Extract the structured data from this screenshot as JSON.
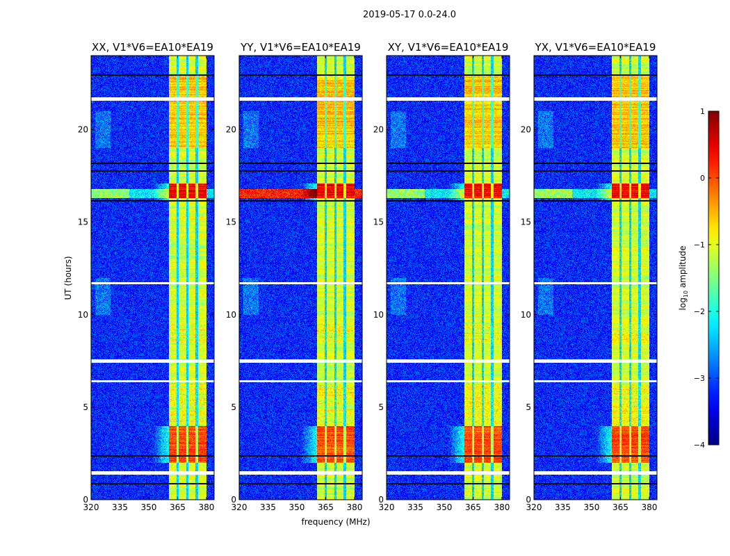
{
  "suptitle": "2019-05-17 0.0-24.0",
  "xlabel": "frequency (MHz)",
  "ylabel": "UT (hours)",
  "colorbar": {
    "label_main": "log",
    "label_sub": "10",
    "label_rest": " amplitude",
    "ticks": [
      "1",
      "0",
      "−1",
      "−2",
      "−3",
      "−4"
    ],
    "tick_values": [
      1,
      0,
      -1,
      -2,
      -3,
      -4
    ],
    "range": [
      -4,
      1
    ],
    "colormap": "jet"
  },
  "chart_data": [
    {
      "type": "heatmap",
      "title": "XX, V1*V6=EA10*EA19",
      "pol": "XX",
      "xlim": [
        320,
        384
      ],
      "ylim": [
        0,
        24
      ],
      "xticks": [
        "320",
        "335",
        "350",
        "365",
        "380"
      ],
      "xtick_values": [
        320,
        335,
        350,
        365,
        380
      ],
      "yticks": [
        "0",
        "5",
        "10",
        "15",
        "20"
      ],
      "ytick_values": [
        0,
        5,
        10,
        15,
        20
      ]
    },
    {
      "type": "heatmap",
      "title": "YY, V1*V6=EA10*EA19",
      "pol": "YY",
      "xlim": [
        320,
        384
      ],
      "ylim": [
        0,
        24
      ],
      "xticks": [
        "320",
        "335",
        "350",
        "365",
        "380"
      ],
      "xtick_values": [
        320,
        335,
        350,
        365,
        380
      ],
      "yticks": [
        "0",
        "5",
        "10",
        "15",
        "20"
      ],
      "ytick_values": [
        0,
        5,
        10,
        15,
        20
      ]
    },
    {
      "type": "heatmap",
      "title": "XY, V1*V6=EA10*EA19",
      "pol": "XY",
      "xlim": [
        320,
        384
      ],
      "ylim": [
        0,
        24
      ],
      "xticks": [
        "320",
        "335",
        "350",
        "365",
        "380"
      ],
      "xtick_values": [
        320,
        335,
        350,
        365,
        380
      ],
      "yticks": [
        "0",
        "5",
        "10",
        "15",
        "20"
      ],
      "ytick_values": [
        0,
        5,
        10,
        15,
        20
      ]
    },
    {
      "type": "heatmap",
      "title": "YX, V1*V6=EA10*EA19",
      "pol": "YX",
      "xlim": [
        320,
        384
      ],
      "ylim": [
        0,
        24
      ],
      "xticks": [
        "320",
        "335",
        "350",
        "365",
        "380"
      ],
      "xtick_values": [
        320,
        335,
        350,
        365,
        380
      ],
      "yticks": [
        "0",
        "5",
        "10",
        "15",
        "20"
      ],
      "ytick_values": [
        0,
        5,
        10,
        15,
        20
      ]
    }
  ],
  "features": {
    "background_log_amp": -3.2,
    "rfi_band_mhz": [
      360.5,
      380
    ],
    "rfi_band_log_amp": -1.1,
    "rfi_gaps_mhz": [
      365,
      370,
      375
    ],
    "bright_events_hours": [
      [
        2.0,
        4.0
      ],
      [
        16.3,
        17.1
      ]
    ],
    "flagged_hours": [
      [
        1.35,
        1.55
      ],
      [
        6.35,
        6.45
      ],
      [
        7.4,
        7.6
      ],
      [
        11.65,
        11.75
      ],
      [
        21.55,
        21.75
      ]
    ],
    "dark_lines_hours": [
      0.9,
      2.4,
      16.2,
      17.8,
      18.2,
      23.0
    ]
  }
}
